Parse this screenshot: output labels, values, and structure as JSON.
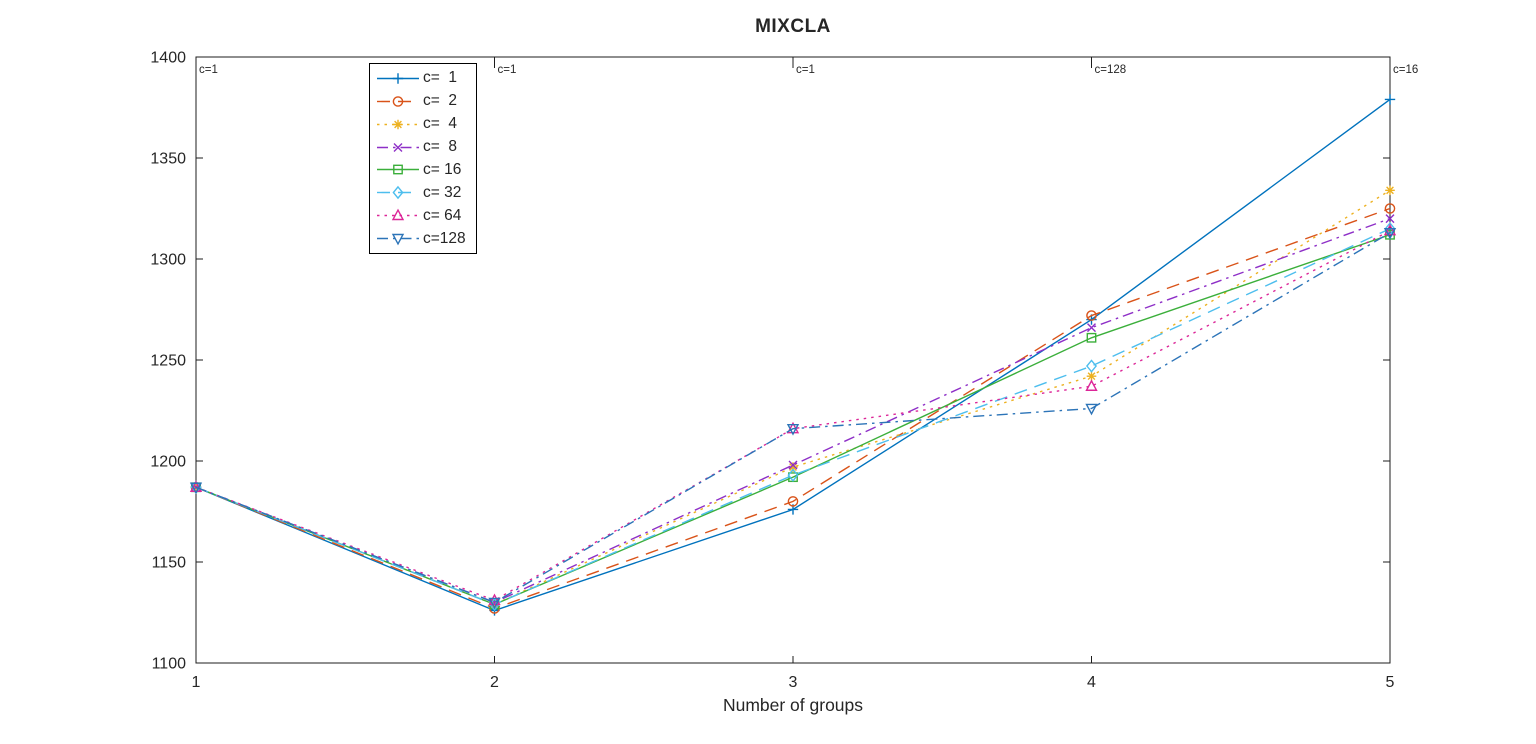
{
  "chart_data": {
    "type": "line",
    "title": "MIXCLA",
    "xlabel": "Number of groups",
    "ylabel": "",
    "x": [
      1,
      2,
      3,
      4,
      5
    ],
    "xlim": [
      1,
      5
    ],
    "ylim": [
      1100,
      1400
    ],
    "xticks": [
      "1",
      "2",
      "3",
      "4",
      "5"
    ],
    "yticks": [
      "1100",
      "1150",
      "1200",
      "1250",
      "1300",
      "1350",
      "1400"
    ],
    "grid": false,
    "legend_position": "upper-left-inside",
    "axis_color": "#1c1c1c",
    "text_color": "#262626",
    "series": [
      {
        "name": "c=  1",
        "color": "#0072BD",
        "line": "solid",
        "marker": "plus",
        "values": [
          1187,
          1126,
          1176,
          1270,
          1379
        ]
      },
      {
        "name": "c=  2",
        "color": "#D95319",
        "line": "dashed",
        "marker": "circle",
        "values": [
          1187,
          1127,
          1180,
          1272,
          1325
        ]
      },
      {
        "name": "c=  4",
        "color": "#EDB120",
        "line": "dotted",
        "marker": "asterisk",
        "values": [
          1187,
          1129,
          1197,
          1242,
          1334
        ]
      },
      {
        "name": "c=  8",
        "color": "#8E2FC7",
        "line": "dashdot",
        "marker": "x",
        "values": [
          1187,
          1130,
          1198,
          1266,
          1320
        ]
      },
      {
        "name": "c= 16",
        "color": "#3BAF3B",
        "line": "solid",
        "marker": "square",
        "values": [
          1187,
          1129,
          1192,
          1261,
          1312
        ]
      },
      {
        "name": "c= 32",
        "color": "#4DBEEE",
        "line": "dashed",
        "marker": "diamond",
        "values": [
          1187,
          1129,
          1193,
          1247,
          1315
        ]
      },
      {
        "name": "c= 64",
        "color": "#DC2698",
        "line": "dotted",
        "marker": "triangle-up",
        "values": [
          1187,
          1131,
          1216,
          1237,
          1314
        ]
      },
      {
        "name": "c=128",
        "color": "#2C74B8",
        "line": "dashdot",
        "marker": "triangle-down",
        "values": [
          1187,
          1130,
          1216,
          1226,
          1313
        ]
      }
    ],
    "top_annotations": [
      {
        "x": 1,
        "text": "c=1"
      },
      {
        "x": 2,
        "text": "c=1"
      },
      {
        "x": 3,
        "text": "c=1"
      },
      {
        "x": 4,
        "text": "c=128"
      },
      {
        "x": 5,
        "text": "c=16"
      }
    ]
  }
}
